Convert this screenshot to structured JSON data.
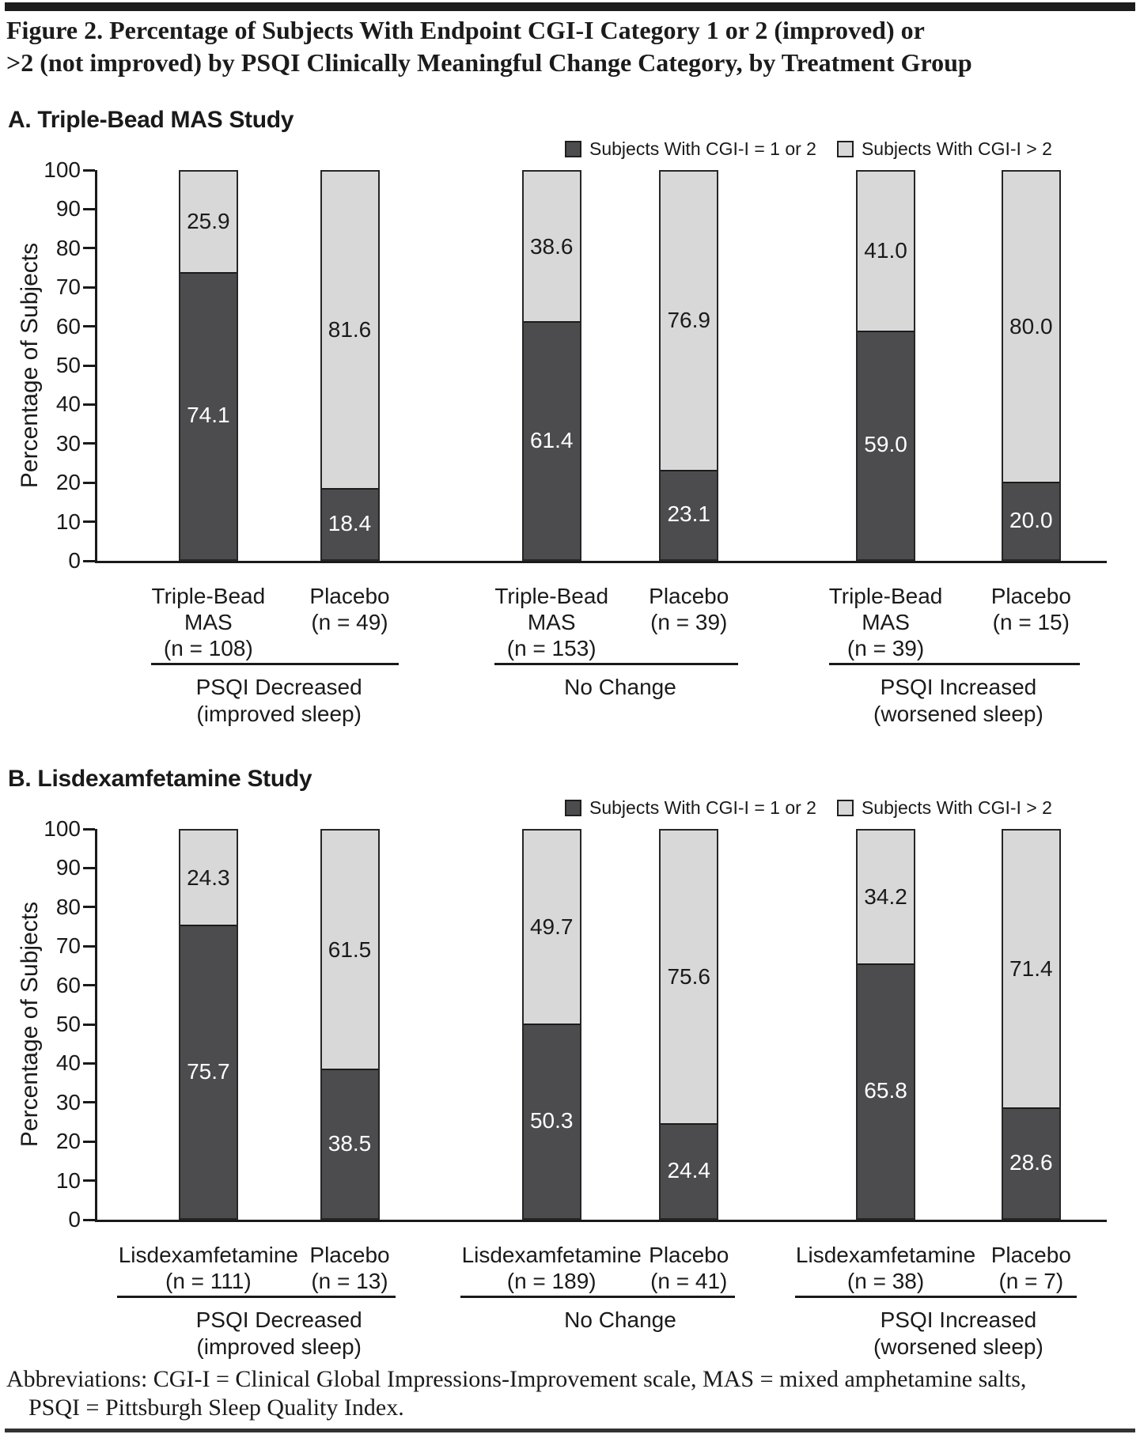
{
  "page": {
    "title_lines": [
      "Figure 2. Percentage of Subjects With Endpoint CGI-I Category 1 or 2 (improved) or",
      ">2 (not improved) by PSQI Clinically Meaningful Change Category, by Treatment Group"
    ],
    "footer_lines": [
      "Abbreviations: CGI-I = Clinical Global Impressions-Improvement scale, MAS = mixed amphetamine salts,",
      "PSQI = Pittsburgh Sleep Quality Index."
    ]
  },
  "colors": {
    "dark_series": "#4c4c4e",
    "light_series": "#d8d8d8",
    "bar_border": "#262626",
    "axis": "#1a1a1a"
  },
  "chart_data": [
    {
      "type": "bar",
      "stacked": true,
      "panel_label": "A. Triple-Bead MAS Study",
      "ylabel": "Percentage of Subjects",
      "ylim": [
        0,
        100
      ],
      "ytick_step": 10,
      "legend": [
        {
          "label": "Subjects With CGI-I = 1 or 2",
          "series": "dark"
        },
        {
          "label": "Subjects With CGI-I > 2",
          "series": "light"
        }
      ],
      "groups": [
        {
          "label_lines": [
            "PSQI Decreased",
            "(improved sleep)"
          ],
          "bars": [
            {
              "name_lines": [
                "Triple-Bead",
                "MAS"
              ],
              "n_label": "(n = 108)",
              "dark": 74.1,
              "light": 25.9
            },
            {
              "name_lines": [
                "Placebo"
              ],
              "n_label": "(n = 49)",
              "dark": 18.4,
              "light": 81.6
            }
          ]
        },
        {
          "label_lines": [
            "No Change"
          ],
          "bars": [
            {
              "name_lines": [
                "Triple-Bead",
                "MAS"
              ],
              "n_label": "(n = 153)",
              "dark": 61.4,
              "light": 38.6
            },
            {
              "name_lines": [
                "Placebo"
              ],
              "n_label": "(n = 39)",
              "dark": 23.1,
              "light": 76.9
            }
          ]
        },
        {
          "label_lines": [
            "PSQI Increased",
            "(worsened sleep)"
          ],
          "bars": [
            {
              "name_lines": [
                "Triple-Bead",
                "MAS"
              ],
              "n_label": "(n = 39)",
              "dark": 59.0,
              "light": 41.0
            },
            {
              "name_lines": [
                "Placebo"
              ],
              "n_label": "(n = 15)",
              "dark": 20.0,
              "light": 80.0
            }
          ]
        }
      ]
    },
    {
      "type": "bar",
      "stacked": true,
      "panel_label": "B. Lisdexamfetamine Study",
      "ylabel": "Percentage of Subjects",
      "ylim": [
        0,
        100
      ],
      "ytick_step": 10,
      "legend": [
        {
          "label": "Subjects With CGI-I = 1 or 2",
          "series": "dark"
        },
        {
          "label": "Subjects With CGI-I > 2",
          "series": "light"
        }
      ],
      "groups": [
        {
          "label_lines": [
            "PSQI Decreased",
            "(improved sleep)"
          ],
          "bars": [
            {
              "name_lines": [
                "Lisdexamfetamine"
              ],
              "n_label": "(n = 111)",
              "dark": 75.7,
              "light": 24.3
            },
            {
              "name_lines": [
                "Placebo"
              ],
              "n_label": "(n = 13)",
              "dark": 38.5,
              "light": 61.5
            }
          ]
        },
        {
          "label_lines": [
            "No Change"
          ],
          "bars": [
            {
              "name_lines": [
                "Lisdexamfetamine"
              ],
              "n_label": "(n = 189)",
              "dark": 50.3,
              "light": 49.7
            },
            {
              "name_lines": [
                "Placebo"
              ],
              "n_label": "(n = 41)",
              "dark": 24.4,
              "light": 75.6
            }
          ]
        },
        {
          "label_lines": [
            "PSQI Increased",
            "(worsened sleep)"
          ],
          "bars": [
            {
              "name_lines": [
                "Lisdexamfetamine"
              ],
              "n_label": "(n = 38)",
              "dark": 65.8,
              "light": 34.2
            },
            {
              "name_lines": [
                "Placebo"
              ],
              "n_label": "(n = 7)",
              "dark": 28.6,
              "light": 71.4
            }
          ]
        }
      ]
    }
  ]
}
